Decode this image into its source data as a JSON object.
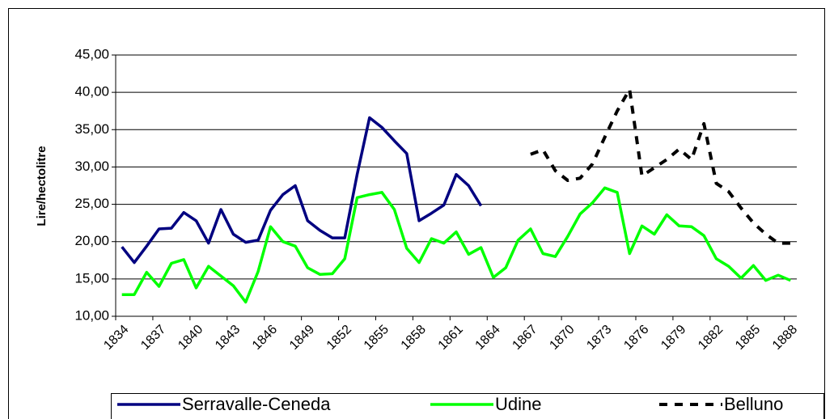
{
  "chart_data": {
    "type": "line",
    "y_label": "Lire/hectolitre",
    "categories": [
      "1834",
      null,
      null,
      "1837",
      null,
      null,
      "1840",
      null,
      null,
      "1843",
      null,
      null,
      "1846",
      null,
      null,
      "1849",
      null,
      null,
      "1852",
      null,
      null,
      "1855",
      null,
      null,
      "1858",
      null,
      null,
      "1861",
      null,
      null,
      "1864",
      null,
      null,
      "1867",
      null,
      null,
      "1870",
      null,
      null,
      "1873",
      null,
      null,
      "1876",
      null,
      null,
      "1879",
      null,
      null,
      "1882",
      null,
      null,
      "1885",
      null,
      null,
      "1888"
    ],
    "series": [
      {
        "name": "Serravalle-Ceneda",
        "color": "#000080",
        "dash": false,
        "values": [
          19.3,
          17.2,
          19.4,
          21.7,
          21.8,
          23.9,
          22.8,
          19.8,
          24.3,
          21.0,
          19.9,
          20.2,
          24.2,
          26.3,
          27.5,
          22.8,
          21.5,
          20.5,
          20.5,
          29.0,
          36.6,
          35.3,
          33.5,
          31.8,
          22.8,
          23.8,
          24.9,
          29.0,
          27.5,
          24.8,
          null,
          null,
          null,
          null,
          null,
          null,
          null,
          null,
          null,
          null,
          null,
          null,
          null,
          null,
          null,
          null,
          null,
          null,
          null,
          null,
          null,
          null,
          null,
          null,
          null
        ]
      },
      {
        "name": "Udine",
        "color": "#00ff00",
        "dash": false,
        "values": [
          12.9,
          12.9,
          15.9,
          14.0,
          17.1,
          17.6,
          13.8,
          16.7,
          15.4,
          14.1,
          11.9,
          16.0,
          22.0,
          20.0,
          19.4,
          16.5,
          15.6,
          15.7,
          17.7,
          25.9,
          26.3,
          26.6,
          24.3,
          19.1,
          17.2,
          20.4,
          19.8,
          21.3,
          18.3,
          19.2,
          15.2,
          16.5,
          20.2,
          21.7,
          18.4,
          18.0,
          20.7,
          23.7,
          25.2,
          27.2,
          26.6,
          18.4,
          22.1,
          21.0,
          23.6,
          22.1,
          22.0,
          20.8,
          17.7,
          16.7,
          15.1,
          16.8,
          14.8,
          15.5,
          14.8
        ]
      },
      {
        "name": "Belluno",
        "color": "#000000",
        "dash": true,
        "values": [
          null,
          null,
          null,
          null,
          null,
          null,
          null,
          null,
          null,
          null,
          null,
          null,
          null,
          null,
          null,
          null,
          null,
          null,
          null,
          null,
          null,
          null,
          null,
          null,
          null,
          null,
          null,
          null,
          null,
          null,
          null,
          null,
          null,
          31.7,
          32.3,
          29.5,
          28.2,
          28.5,
          30.4,
          34.0,
          37.5,
          40.4,
          28.8,
          29.9,
          31.0,
          32.4,
          31.0,
          35.8,
          27.8,
          26.7,
          24.5,
          22.5,
          21.0,
          19.8,
          19.8
        ]
      }
    ],
    "ylim": [
      10,
      45
    ],
    "yticks": [
      {
        "value": 10,
        "label": "10,00"
      },
      {
        "value": 15,
        "label": "15,00"
      },
      {
        "value": 20,
        "label": "20,00"
      },
      {
        "value": 25,
        "label": "25,00"
      },
      {
        "value": 30,
        "label": "30,00"
      },
      {
        "value": 35,
        "label": "35,00"
      },
      {
        "value": 40,
        "label": "40,00"
      },
      {
        "value": 45,
        "label": "45,00"
      }
    ],
    "grid": true,
    "legend": "bottom"
  }
}
